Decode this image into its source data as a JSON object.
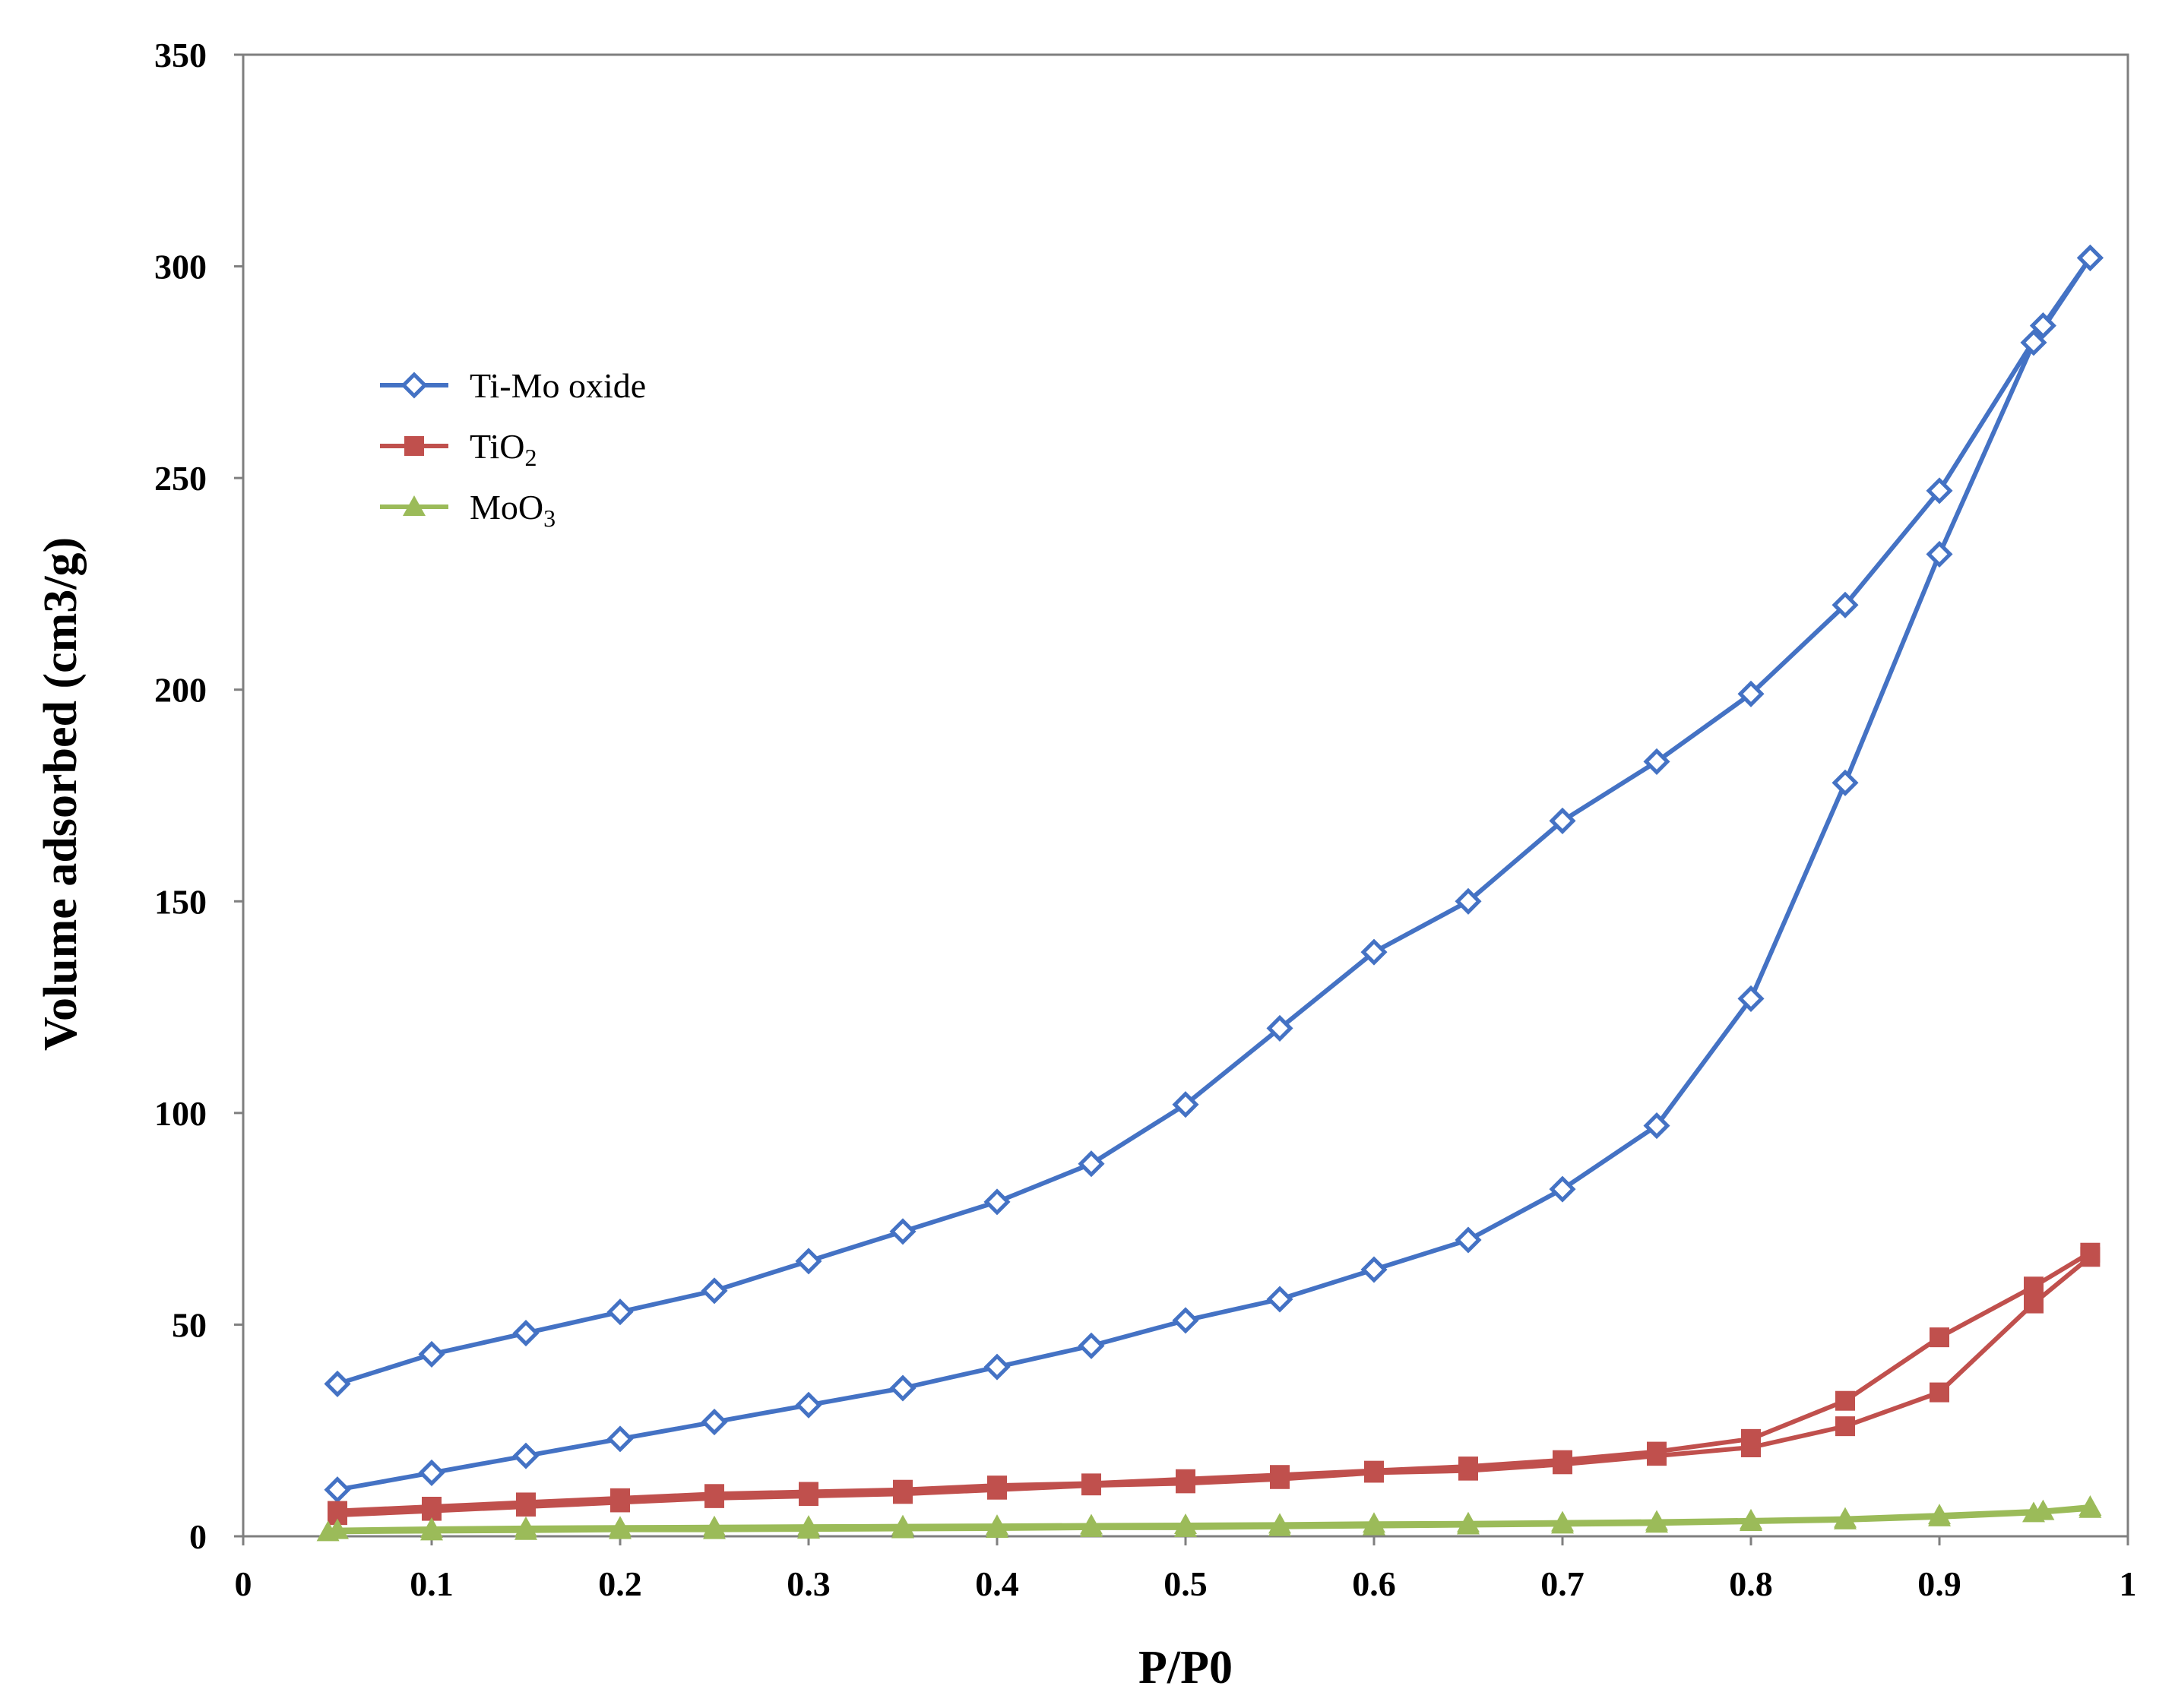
{
  "chart_data": {
    "type": "line",
    "title": "",
    "xlabel": "P/P0",
    "ylabel": "Volume adsorbed (cm3/g)",
    "xlim": [
      0,
      1
    ],
    "ylim": [
      0,
      350
    ],
    "xticks": [
      "0",
      "0.1",
      "0.2",
      "0.3",
      "0.4",
      "0.5",
      "0.6",
      "0.7",
      "0.8",
      "0.9",
      "1"
    ],
    "yticks": [
      "0",
      "50",
      "100",
      "150",
      "200",
      "250",
      "300",
      "350"
    ],
    "grid": false,
    "legend_position": "upper-left",
    "series": [
      {
        "name": "Ti-Mo oxide",
        "label_main": "Ti-Mo oxide",
        "label_sub": "",
        "color": "#4472c4",
        "marker": "diamond-open",
        "branches": [
          {
            "x": [
              0.05,
              0.1,
              0.15,
              0.2,
              0.25,
              0.3,
              0.35,
              0.4,
              0.45,
              0.5,
              0.55,
              0.6,
              0.65,
              0.7,
              0.75,
              0.8,
              0.85,
              0.9,
              0.95,
              0.98
            ],
            "y": [
              11,
              15,
              19,
              23,
              27,
              31,
              35,
              40,
              45,
              51,
              56,
              63,
              70,
              82,
              97,
              127,
              178,
              232,
              282,
              302
            ]
          },
          {
            "x": [
              0.05,
              0.1,
              0.15,
              0.2,
              0.25,
              0.3,
              0.35,
              0.4,
              0.45,
              0.5,
              0.55,
              0.6,
              0.65,
              0.7,
              0.75,
              0.8,
              0.85,
              0.9,
              0.955,
              0.98
            ],
            "y": [
              36,
              43,
              48,
              53,
              58,
              65,
              72,
              79,
              88,
              102,
              120,
              138,
              150,
              169,
              183,
              199,
              220,
              247,
              286,
              302
            ]
          }
        ]
      },
      {
        "name": "TiO2",
        "label_main": "TiO",
        "label_sub": "2",
        "color": "#c0504d",
        "marker": "square",
        "branches": [
          {
            "x": [
              0.05,
              0.1,
              0.15,
              0.2,
              0.25,
              0.3,
              0.35,
              0.4,
              0.45,
              0.5,
              0.55,
              0.6,
              0.65,
              0.7,
              0.75,
              0.8,
              0.85,
              0.9,
              0.95,
              0.98
            ],
            "y": [
              5,
              6,
              7,
              8,
              9,
              9.5,
              10,
              11,
              12,
              12.5,
              13.5,
              15,
              15.5,
              17,
              19,
              21,
              26,
              34,
              55,
              66
            ]
          },
          {
            "x": [
              0.05,
              0.1,
              0.15,
              0.2,
              0.25,
              0.3,
              0.35,
              0.4,
              0.45,
              0.5,
              0.55,
              0.6,
              0.65,
              0.7,
              0.75,
              0.8,
              0.85,
              0.9,
              0.95,
              0.98
            ],
            "y": [
              6,
              7,
              8,
              9,
              10,
              10.5,
              11,
              12,
              12.5,
              13.5,
              14.5,
              15.5,
              16.5,
              18,
              20,
              23,
              32,
              47,
              59,
              67
            ]
          }
        ]
      },
      {
        "name": "MoO3",
        "label_main": "MoO",
        "label_sub": "3",
        "color": "#9bbb59",
        "marker": "triangle",
        "branches": [
          {
            "x": [
              0.045,
              0.1,
              0.15,
              0.2,
              0.25,
              0.3,
              0.35,
              0.4,
              0.45,
              0.5,
              0.55,
              0.6,
              0.65,
              0.7,
              0.75,
              0.8,
              0.85,
              0.9,
              0.95,
              0.98
            ],
            "y": [
              1,
              1.2,
              1.3,
              1.5,
              1.5,
              1.6,
              1.7,
              1.8,
              2,
              2,
              2.2,
              2.4,
              2.6,
              2.8,
              3,
              3.4,
              3.8,
              4.5,
              5.5,
              6.5
            ]
          },
          {
            "x": [
              0.05,
              0.1,
              0.15,
              0.2,
              0.25,
              0.3,
              0.35,
              0.4,
              0.45,
              0.5,
              0.55,
              0.6,
              0.65,
              0.7,
              0.75,
              0.8,
              0.85,
              0.9,
              0.955,
              0.98
            ],
            "y": [
              1.5,
              1.8,
              2,
              2.1,
              2.2,
              2.3,
              2.4,
              2.5,
              2.6,
              2.7,
              2.8,
              3,
              3.1,
              3.3,
              3.5,
              3.8,
              4.2,
              5,
              6,
              7
            ]
          }
        ]
      }
    ]
  }
}
